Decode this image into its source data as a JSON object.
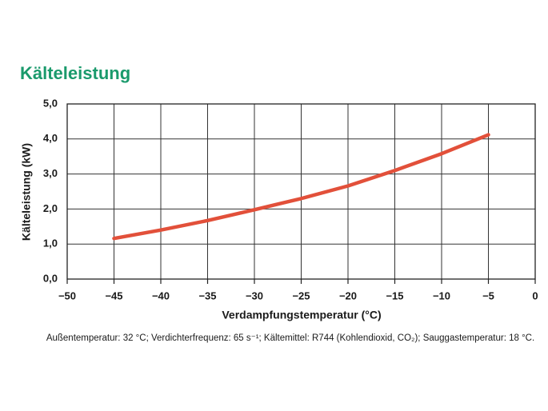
{
  "chart_data": {
    "type": "line",
    "title": "Kälteleistung",
    "x_label": "Verdampfungstemperatur (°C)",
    "y_label": "Kälteleistung (kW)",
    "footnote": "Außentemperatur: 32 °C; Verdichterfrequenz: 65 s⁻¹; Kältemittel: R744 (Kohlendioxid, CO₂); Sauggastemperatur: 18 °C.",
    "x": [
      -45,
      -40,
      -35,
      -30,
      -25,
      -20,
      -15,
      -10,
      -5
    ],
    "series": [
      {
        "color": "#e2503a",
        "values": [
          1.16,
          1.4,
          1.67,
          1.98,
          2.3,
          2.66,
          3.1,
          3.58,
          4.12
        ]
      }
    ],
    "xlim": [
      -50,
      0
    ],
    "xticks": [
      {
        "value": -50,
        "label": "−50"
      },
      {
        "value": -45,
        "label": "−45"
      },
      {
        "value": -40,
        "label": "−40"
      },
      {
        "value": -35,
        "label": "−35"
      },
      {
        "value": -30,
        "label": "−30"
      },
      {
        "value": -25,
        "label": "−25"
      },
      {
        "value": -20,
        "label": "−20"
      },
      {
        "value": -15,
        "label": "−15"
      },
      {
        "value": -10,
        "label": "−10"
      },
      {
        "value": -5,
        "label": "−5"
      },
      0
    ],
    "ylim": [
      0,
      5
    ],
    "yticks": [
      {
        "value": 0,
        "label": "0,0"
      },
      {
        "value": 1,
        "label": "1,0"
      },
      {
        "value": 2,
        "label": "2,0"
      },
      {
        "value": 3,
        "label": "3,0"
      },
      {
        "value": 4,
        "label": "4,0"
      },
      {
        "value": 5,
        "label": "5,0"
      }
    ],
    "grid": true
  }
}
